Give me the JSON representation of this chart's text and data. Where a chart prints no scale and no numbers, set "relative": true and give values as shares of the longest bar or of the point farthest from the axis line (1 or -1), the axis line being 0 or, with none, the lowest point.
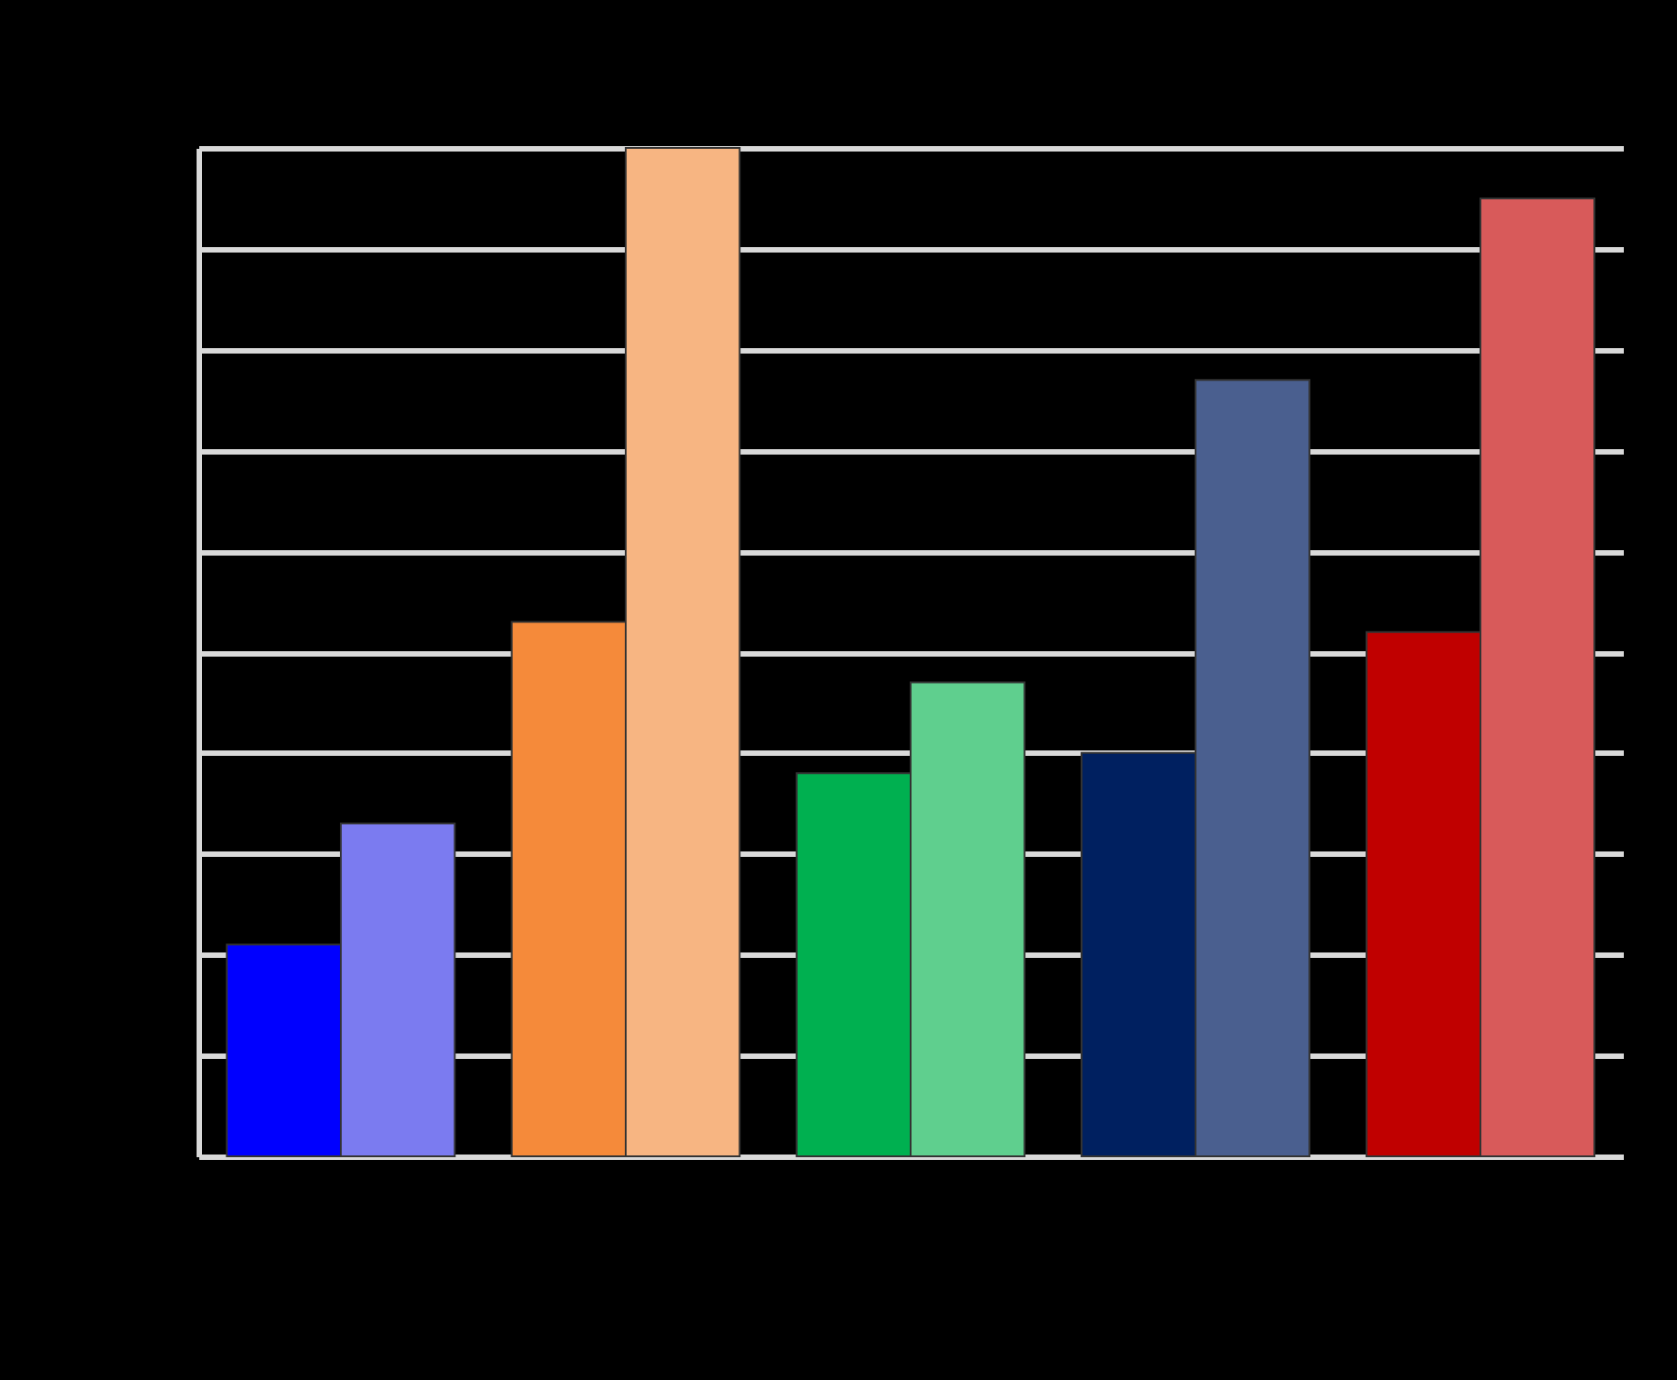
{
  "chart_data": {
    "type": "bar",
    "relative": true,
    "categories": [
      null,
      null,
      null,
      null,
      null
    ],
    "series": [
      {
        "colors": [
          "#0000ff",
          "#f58a3a",
          "#00b050",
          "#002060",
          "#c00000"
        ],
        "values": [
          0.21,
          0.53,
          0.38,
          0.4,
          0.52
        ]
      },
      {
        "colors": [
          "#7b7bf0",
          "#f7b582",
          "#5fcf8e",
          "#4a5f8f",
          "#d85a5a"
        ],
        "values": [
          0.33,
          1.0,
          0.47,
          0.77,
          0.95
        ]
      }
    ],
    "grid": "y"
  }
}
